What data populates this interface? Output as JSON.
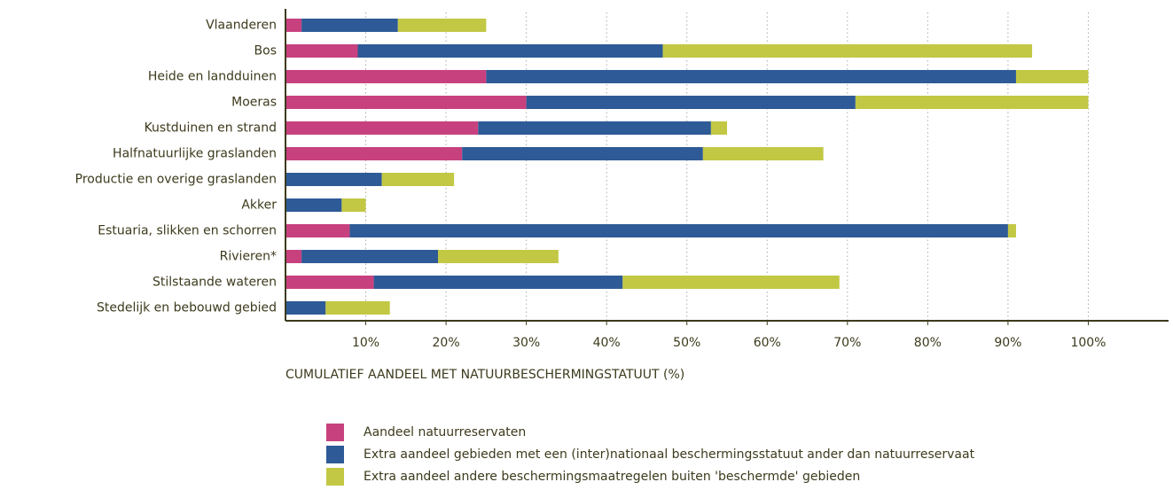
{
  "chart_data": {
    "type": "stacked-barh",
    "xlabel": "CUMULATIEF AANDEEL MET NATUURBESCHERMINGSTATUUT (%)",
    "categories": [
      "Vlaanderen",
      "Bos",
      "Heide en landduinen",
      "Moeras",
      "Kustduinen en strand",
      "Halfnatuurlijke graslanden",
      "Productie en overige graslanden",
      "Akker",
      "Estuaria, slikken en schorren",
      "Rivieren*",
      "Stilstaande wateren",
      "Stedelijk en bebouwd gebied"
    ],
    "series": [
      {
        "name": "Aandeel natuurreservaten",
        "color": "#c8417f",
        "values": [
          2,
          9,
          25,
          30,
          24,
          22,
          0,
          0,
          8,
          2,
          11,
          0
        ]
      },
      {
        "name": "Extra aandeel gebieden met een (inter)nationaal beschermingsstatuut ander dan natuurreservaat",
        "color": "#2e5a97",
        "values": [
          12,
          38,
          66,
          41,
          29,
          30,
          12,
          7,
          82,
          17,
          31,
          5
        ]
      },
      {
        "name": "Extra aandeel andere beschermingsmaatregelen buiten 'beschermde' gebieden",
        "color": "#c2c844",
        "values": [
          11,
          46,
          9,
          29,
          2,
          15,
          9,
          3,
          1,
          15,
          27,
          8
        ]
      }
    ],
    "xlim": [
      0,
      110
    ],
    "xticks": [
      {
        "value": 10,
        "label": "10%"
      },
      {
        "value": 20,
        "label": "20%"
      },
      {
        "value": 30,
        "label": "30%"
      },
      {
        "value": 40,
        "label": "40%"
      },
      {
        "value": 50,
        "label": "50%"
      },
      {
        "value": 60,
        "label": "60%"
      },
      {
        "value": 70,
        "label": "70%"
      },
      {
        "value": 80,
        "label": "80%"
      },
      {
        "value": 90,
        "label": "90%"
      },
      {
        "value": 100,
        "label": "100%"
      }
    ],
    "grid": true
  }
}
